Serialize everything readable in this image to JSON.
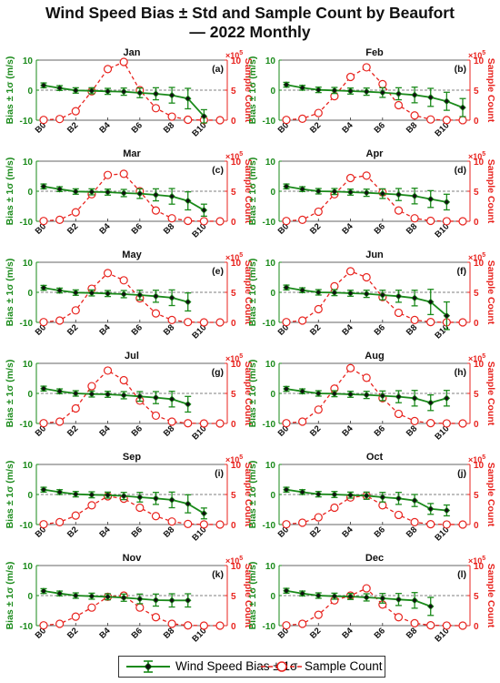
{
  "figure": {
    "title_line1": "Wind Speed Bias ± Std and Sample Count by Beaufort",
    "title_line2": "— 2022 Monthly"
  },
  "colors": {
    "bias": "#1a8a1a",
    "count": "#e8231e",
    "zero_line": "#555555"
  },
  "legend": {
    "bias_label": "Wind Speed Bias ± 1σ",
    "count_label": "Sample Count",
    "bias_marker": "green-diamond-errorbar",
    "count_marker": "red-open-circle-dashed"
  },
  "chart_data": [
    {
      "type": "line",
      "title": "Jan",
      "label": "(a)",
      "x": [
        "B0",
        "B1",
        "B2",
        "B3",
        "B4",
        "B5",
        "B6",
        "B7",
        "B8",
        "B9",
        "B10",
        "B11"
      ],
      "xticks": [
        "B0",
        "B2",
        "B4",
        "B6",
        "B8",
        "B10"
      ],
      "ylabel": "Bias ± 1σ (m/s)",
      "ylim": [
        -10,
        10
      ],
      "yticks": [
        -10,
        0,
        10
      ],
      "y2label": "Sample Count",
      "y2lim": [
        0,
        1000000
      ],
      "y2ticks": [
        0,
        5,
        10
      ],
      "y2_exponent": "×10^5",
      "series": [
        {
          "name": "Wind Speed Bias ± 1σ",
          "values": [
            1.6,
            0.7,
            -0.1,
            -0.2,
            -0.4,
            -0.5,
            -0.9,
            -1.2,
            -1.7,
            -2.8,
            -8.7,
            null
          ],
          "std": [
            0.8,
            0.8,
            0.9,
            1.0,
            1.0,
            1.2,
            1.6,
            2.0,
            2.6,
            3.4,
            2.2,
            null
          ]
        },
        {
          "name": "Sample Count",
          "values": [
            5000,
            20000,
            150000,
            480000,
            850000,
            970000,
            500000,
            200000,
            60000,
            8000,
            1000,
            500
          ]
        }
      ]
    },
    {
      "type": "line",
      "title": "Feb",
      "label": "(b)",
      "x": [
        "B0",
        "B1",
        "B2",
        "B3",
        "B4",
        "B5",
        "B6",
        "B7",
        "B8",
        "B9",
        "B10",
        "B11"
      ],
      "xticks": [
        "B0",
        "B2",
        "B4",
        "B6",
        "B8",
        "B10"
      ],
      "ylabel": "Bias ± 1σ (m/s)",
      "ylim": [
        -10,
        10
      ],
      "yticks": [
        -10,
        0,
        10
      ],
      "y2label": "Sample Count",
      "y2lim": [
        0,
        1000000
      ],
      "y2ticks": [
        0,
        5,
        10
      ],
      "y2_exponent": "×10^5",
      "series": [
        {
          "name": "Wind Speed Bias ± 1σ",
          "values": [
            1.8,
            0.8,
            0.1,
            -0.1,
            -0.3,
            -0.5,
            -0.8,
            -1.2,
            -1.6,
            -2.4,
            -3.7,
            -5.8
          ],
          "std": [
            0.8,
            0.8,
            0.9,
            1.0,
            1.0,
            1.2,
            1.6,
            2.0,
            2.6,
            3.0,
            3.0,
            3.0
          ]
        },
        {
          "name": "Sample Count",
          "values": [
            5000,
            25000,
            120000,
            400000,
            720000,
            880000,
            600000,
            250000,
            80000,
            12000,
            2000,
            800
          ]
        }
      ]
    },
    {
      "type": "line",
      "title": "Mar",
      "label": "(c)",
      "x": [
        "B0",
        "B1",
        "B2",
        "B3",
        "B4",
        "B5",
        "B6",
        "B7",
        "B8",
        "B9",
        "B10",
        "B11"
      ],
      "xticks": [
        "B0",
        "B2",
        "B4",
        "B6",
        "B8",
        "B10"
      ],
      "ylabel": "Bias ± 1σ (m/s)",
      "ylim": [
        -10,
        10
      ],
      "yticks": [
        -10,
        0,
        10
      ],
      "y2label": "Sample Count",
      "y2lim": [
        0,
        1000000
      ],
      "y2ticks": [
        0,
        5,
        10
      ],
      "y2_exponent": "×10^5",
      "series": [
        {
          "name": "Wind Speed Bias ± 1σ",
          "values": [
            1.6,
            0.7,
            -0.1,
            -0.2,
            -0.3,
            -0.6,
            -0.8,
            -1.2,
            -1.7,
            -3.2,
            -6.3,
            null
          ],
          "std": [
            0.8,
            0.8,
            0.9,
            1.0,
            1.0,
            1.2,
            1.6,
            2.0,
            2.6,
            3.0,
            2.0,
            null
          ]
        },
        {
          "name": "Sample Count",
          "values": [
            5000,
            25000,
            150000,
            450000,
            770000,
            790000,
            500000,
            180000,
            50000,
            8000,
            1000,
            500
          ]
        }
      ]
    },
    {
      "type": "line",
      "title": "Apr",
      "label": "(d)",
      "x": [
        "B0",
        "B1",
        "B2",
        "B3",
        "B4",
        "B5",
        "B6",
        "B7",
        "B8",
        "B9",
        "B10",
        "B11"
      ],
      "xticks": [
        "B0",
        "B2",
        "B4",
        "B6",
        "B8",
        "B10"
      ],
      "ylabel": "Bias ± 1σ (m/s)",
      "ylim": [
        -10,
        10
      ],
      "yticks": [
        -10,
        0,
        10
      ],
      "y2label": "Sample Count",
      "y2lim": [
        0,
        1000000
      ],
      "y2ticks": [
        0,
        5,
        10
      ],
      "y2_exponent": "×10^5",
      "series": [
        {
          "name": "Wind Speed Bias ± 1σ",
          "values": [
            1.6,
            0.7,
            0.0,
            -0.1,
            -0.3,
            -0.5,
            -0.8,
            -1.1,
            -1.6,
            -2.6,
            -3.6,
            null
          ],
          "std": [
            0.8,
            0.8,
            0.9,
            1.0,
            1.0,
            1.2,
            1.6,
            2.0,
            2.6,
            2.8,
            2.6,
            null
          ]
        },
        {
          "name": "Sample Count",
          "values": [
            5000,
            25000,
            160000,
            450000,
            720000,
            760000,
            480000,
            180000,
            50000,
            8000,
            1000,
            500
          ]
        }
      ]
    },
    {
      "type": "line",
      "title": "May",
      "label": "(e)",
      "x": [
        "B0",
        "B1",
        "B2",
        "B3",
        "B4",
        "B5",
        "B6",
        "B7",
        "B8",
        "B9",
        "B10",
        "B11"
      ],
      "xticks": [
        "B0",
        "B2",
        "B4",
        "B6",
        "B8",
        "B10"
      ],
      "ylabel": "Bias ± 1σ (m/s)",
      "ylim": [
        -10,
        10
      ],
      "yticks": [
        -10,
        0,
        10
      ],
      "y2label": "Sample Count",
      "y2lim": [
        0,
        1000000
      ],
      "y2ticks": [
        0,
        5,
        10
      ],
      "y2_exponent": "×10^5",
      "series": [
        {
          "name": "Wind Speed Bias ± 1σ",
          "values": [
            1.5,
            0.6,
            -0.1,
            -0.2,
            -0.4,
            -0.6,
            -0.9,
            -1.3,
            -1.8,
            -3.2,
            null,
            null
          ],
          "std": [
            0.8,
            0.8,
            0.9,
            1.0,
            1.0,
            1.2,
            1.6,
            2.0,
            2.6,
            3.0,
            null,
            null
          ]
        },
        {
          "name": "Sample Count",
          "values": [
            5000,
            30000,
            200000,
            560000,
            820000,
            700000,
            400000,
            150000,
            40000,
            5000,
            500,
            200
          ]
        }
      ]
    },
    {
      "type": "line",
      "title": "Jun",
      "label": "(f)",
      "x": [
        "B0",
        "B1",
        "B2",
        "B3",
        "B4",
        "B5",
        "B6",
        "B7",
        "B8",
        "B9",
        "B10",
        "B11"
      ],
      "xticks": [
        "B0",
        "B2",
        "B4",
        "B6",
        "B8",
        "B10"
      ],
      "ylabel": "Bias ± 1σ (m/s)",
      "ylim": [
        -10,
        10
      ],
      "yticks": [
        -10,
        0,
        10
      ],
      "y2label": "Sample Count",
      "y2lim": [
        0,
        1000000
      ],
      "y2ticks": [
        0,
        5,
        10
      ],
      "y2_exponent": "×10^5",
      "series": [
        {
          "name": "Wind Speed Bias ± 1σ",
          "values": [
            1.6,
            0.7,
            0.0,
            -0.1,
            -0.3,
            -0.5,
            -0.9,
            -1.3,
            -1.9,
            -3.2,
            -7.8,
            null
          ],
          "std": [
            0.8,
            0.8,
            0.9,
            1.0,
            1.0,
            1.2,
            1.6,
            2.0,
            2.6,
            4.2,
            4.6,
            null
          ]
        },
        {
          "name": "Sample Count",
          "values": [
            5000,
            30000,
            220000,
            600000,
            850000,
            750000,
            420000,
            160000,
            40000,
            6000,
            1000,
            500
          ]
        }
      ]
    },
    {
      "type": "line",
      "title": "Jul",
      "label": "(g)",
      "x": [
        "B0",
        "B1",
        "B2",
        "B3",
        "B4",
        "B5",
        "B6",
        "B7",
        "B8",
        "B9",
        "B10",
        "B11"
      ],
      "xticks": [
        "B0",
        "B2",
        "B4",
        "B6",
        "B8",
        "B10"
      ],
      "ylabel": "Bias ± 1σ (m/s)",
      "ylim": [
        -10,
        10
      ],
      "yticks": [
        -10,
        0,
        10
      ],
      "y2label": "Sample Count",
      "y2lim": [
        0,
        1000000
      ],
      "y2ticks": [
        0,
        5,
        10
      ],
      "y2_exponent": "×10^5",
      "series": [
        {
          "name": "Wind Speed Bias ± 1σ",
          "values": [
            1.6,
            0.7,
            0.0,
            -0.2,
            -0.3,
            -0.6,
            -1.0,
            -1.4,
            -1.9,
            -3.6,
            null,
            null
          ],
          "std": [
            0.8,
            0.8,
            0.9,
            1.0,
            1.0,
            1.2,
            1.6,
            2.0,
            2.6,
            2.6,
            null,
            null
          ]
        },
        {
          "name": "Sample Count",
          "values": [
            5000,
            30000,
            250000,
            620000,
            880000,
            720000,
            380000,
            130000,
            30000,
            4000,
            500,
            200
          ]
        }
      ]
    },
    {
      "type": "line",
      "title": "Aug",
      "label": "(h)",
      "x": [
        "B0",
        "B1",
        "B2",
        "B3",
        "B4",
        "B5",
        "B6",
        "B7",
        "B8",
        "B9",
        "B10",
        "B11"
      ],
      "xticks": [
        "B0",
        "B2",
        "B4",
        "B6",
        "B8",
        "B10"
      ],
      "ylabel": "Bias ± 1σ (m/s)",
      "ylim": [
        -10,
        10
      ],
      "yticks": [
        -10,
        0,
        10
      ],
      "y2label": "Sample Count",
      "y2lim": [
        0,
        1000000
      ],
      "y2ticks": [
        0,
        5,
        10
      ],
      "y2_exponent": "×10^5",
      "series": [
        {
          "name": "Wind Speed Bias ± 1σ",
          "values": [
            1.5,
            0.7,
            0.0,
            -0.1,
            -0.3,
            -0.5,
            -0.8,
            -1.1,
            -1.6,
            -3.1,
            -1.6,
            null
          ],
          "std": [
            0.8,
            0.8,
            0.9,
            1.0,
            1.0,
            1.2,
            1.6,
            2.0,
            2.6,
            2.6,
            2.6,
            null
          ]
        },
        {
          "name": "Sample Count",
          "values": [
            5000,
            30000,
            230000,
            580000,
            920000,
            760000,
            420000,
            160000,
            40000,
            6000,
            1000,
            300
          ]
        }
      ]
    },
    {
      "type": "line",
      "title": "Sep",
      "label": "(i)",
      "x": [
        "B0",
        "B1",
        "B2",
        "B3",
        "B4",
        "B5",
        "B6",
        "B7",
        "B8",
        "B9",
        "B10",
        "B11"
      ],
      "xticks": [
        "B0",
        "B2",
        "B4",
        "B6",
        "B8",
        "B10"
      ],
      "ylabel": "Bias ± 1σ (m/s)",
      "ylim": [
        -10,
        10
      ],
      "yticks": [
        -10,
        0,
        10
      ],
      "y2label": "Sample Count",
      "y2lim": [
        0,
        1000000
      ],
      "y2ticks": [
        0,
        5,
        10
      ],
      "y2_exponent": "×10^5",
      "series": [
        {
          "name": "Wind Speed Bias ± 1σ",
          "values": [
            1.6,
            0.8,
            0.1,
            -0.1,
            -0.2,
            -0.5,
            -0.9,
            -1.3,
            -1.8,
            -3.1,
            -6.3,
            null
          ],
          "std": [
            0.8,
            0.8,
            0.9,
            1.0,
            1.0,
            1.2,
            1.6,
            2.0,
            2.6,
            3.0,
            1.8,
            null
          ]
        },
        {
          "name": "Sample Count",
          "values": [
            5000,
            40000,
            150000,
            320000,
            470000,
            430000,
            280000,
            140000,
            50000,
            10000,
            2000,
            500
          ]
        }
      ]
    },
    {
      "type": "line",
      "title": "Oct",
      "label": "(j)",
      "x": [
        "B0",
        "B1",
        "B2",
        "B3",
        "B4",
        "B5",
        "B6",
        "B7",
        "B8",
        "B9",
        "B10",
        "B11"
      ],
      "xticks": [
        "B0",
        "B2",
        "B4",
        "B6",
        "B8",
        "B10"
      ],
      "ylabel": "Bias ± 1σ (m/s)",
      "ylim": [
        -10,
        10
      ],
      "yticks": [
        -10,
        0,
        10
      ],
      "y2label": "Sample Count",
      "y2lim": [
        0,
        1000000
      ],
      "y2ticks": [
        0,
        5,
        10
      ],
      "y2_exponent": "×10^5",
      "series": [
        {
          "name": "Wind Speed Bias ± 1σ",
          "values": [
            1.6,
            0.8,
            0.1,
            0.0,
            -0.2,
            -0.4,
            -0.9,
            -1.3,
            -2.0,
            -4.8,
            -5.3,
            null
          ],
          "std": [
            0.8,
            0.8,
            0.9,
            1.0,
            1.0,
            1.2,
            1.6,
            2.0,
            2.0,
            1.8,
            1.8,
            null
          ]
        },
        {
          "name": "Sample Count",
          "values": [
            5000,
            30000,
            120000,
            280000,
            450000,
            480000,
            320000,
            160000,
            40000,
            6000,
            1000,
            500
          ]
        }
      ]
    },
    {
      "type": "line",
      "title": "Nov",
      "label": "(k)",
      "x": [
        "B0",
        "B1",
        "B2",
        "B3",
        "B4",
        "B5",
        "B6",
        "B7",
        "B8",
        "B9",
        "B10",
        "B11"
      ],
      "xticks": [
        "B0",
        "B2",
        "B4",
        "B6",
        "B8",
        "B10"
      ],
      "ylabel": "Bias ± 1σ (m/s)",
      "ylim": [
        -10,
        10
      ],
      "yticks": [
        -10,
        0,
        10
      ],
      "y2label": "Sample Count",
      "y2lim": [
        0,
        1000000
      ],
      "y2ticks": [
        0,
        5,
        10
      ],
      "y2_exponent": "×10^5",
      "series": [
        {
          "name": "Wind Speed Bias ± 1σ",
          "values": [
            1.5,
            0.7,
            0.0,
            -0.2,
            -0.4,
            -0.7,
            -1.1,
            -1.5,
            -1.6,
            -1.6,
            null,
            null
          ],
          "std": [
            0.8,
            0.8,
            0.9,
            1.0,
            1.0,
            1.2,
            1.6,
            2.0,
            2.2,
            2.2,
            null,
            null
          ]
        },
        {
          "name": "Sample Count",
          "values": [
            5000,
            30000,
            150000,
            300000,
            480000,
            500000,
            300000,
            140000,
            30000,
            4000,
            500,
            200
          ]
        }
      ]
    },
    {
      "type": "line",
      "title": "Dec",
      "label": "(l)",
      "x": [
        "B0",
        "B1",
        "B2",
        "B3",
        "B4",
        "B5",
        "B6",
        "B7",
        "B8",
        "B9",
        "B10",
        "B11"
      ],
      "xticks": [
        "B0",
        "B2",
        "B4",
        "B6",
        "B8",
        "B10"
      ],
      "ylabel": "Bias ± 1σ (m/s)",
      "ylim": [
        -10,
        10
      ],
      "yticks": [
        -10,
        0,
        10
      ],
      "y2label": "Sample Count",
      "y2lim": [
        0,
        1000000
      ],
      "y2ticks": [
        0,
        5,
        10
      ],
      "y2_exponent": "×10^5",
      "series": [
        {
          "name": "Wind Speed Bias ± 1σ",
          "values": [
            1.6,
            0.7,
            0.0,
            -0.2,
            -0.3,
            -0.6,
            -0.9,
            -1.3,
            -1.6,
            -3.6,
            null,
            null
          ],
          "std": [
            0.8,
            0.8,
            0.9,
            1.0,
            1.0,
            1.2,
            1.6,
            2.0,
            2.6,
            3.0,
            null,
            null
          ]
        },
        {
          "name": "Sample Count",
          "values": [
            5000,
            30000,
            180000,
            420000,
            500000,
            620000,
            350000,
            140000,
            40000,
            6000,
            1000,
            400
          ]
        }
      ]
    }
  ]
}
